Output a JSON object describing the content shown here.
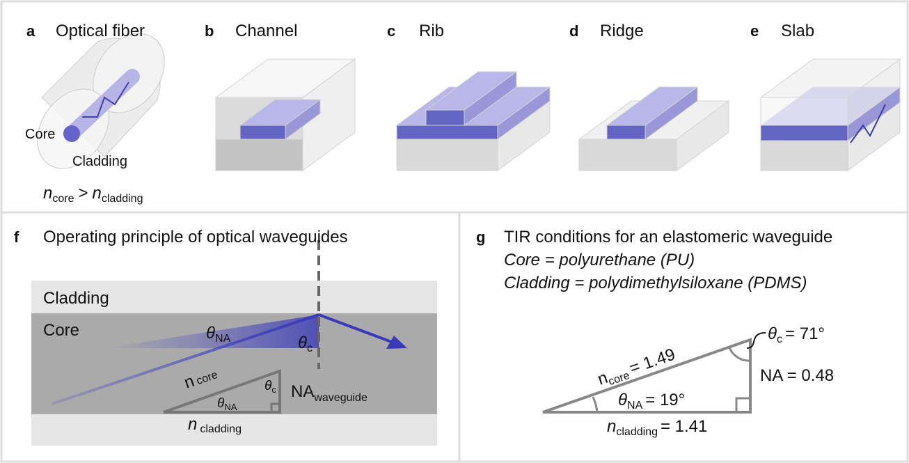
{
  "panels": [
    {
      "letter": "a",
      "title": "Optical fiber",
      "labels": [
        "Core",
        "Cladding"
      ],
      "formula": [
        "n",
        "core",
        ">",
        "n",
        "cladding"
      ]
    },
    {
      "letter": "b",
      "title": "Channel"
    },
    {
      "letter": "c",
      "title": "Rib"
    },
    {
      "letter": "d",
      "title": "Ridge"
    },
    {
      "letter": "e",
      "title": "Slab"
    }
  ],
  "panel_f": {
    "letter": "f",
    "title": "Operating principle of optical waveguides",
    "cladding": "Cladding",
    "core": "Core",
    "theta_na": [
      "θ",
      "NA"
    ],
    "theta_c": [
      "θ",
      "c"
    ],
    "n_core": [
      "n",
      "core"
    ],
    "n_cladding": [
      "n",
      "cladding"
    ],
    "tri_theta_na": [
      "θ",
      "NA"
    ],
    "tri_theta_c": [
      "θ",
      "c"
    ],
    "na": [
      "NA",
      "waveguide"
    ]
  },
  "panel_g": {
    "letter": "g",
    "title": "TIR conditions for an elastomeric waveguide",
    "line1": "Core = polyurethane (PU)",
    "line2": "Cladding = polydimethylsiloxane (PDMS)",
    "n_core": [
      "n",
      "core",
      "= 1.49"
    ],
    "theta_c": [
      "θ",
      "c",
      "= 71°"
    ],
    "na": "NA = 0.48",
    "theta_na": [
      "θ",
      "NA",
      "= 19°"
    ],
    "n_cladding": [
      "n",
      "cladding",
      "= 1.41"
    ]
  }
}
